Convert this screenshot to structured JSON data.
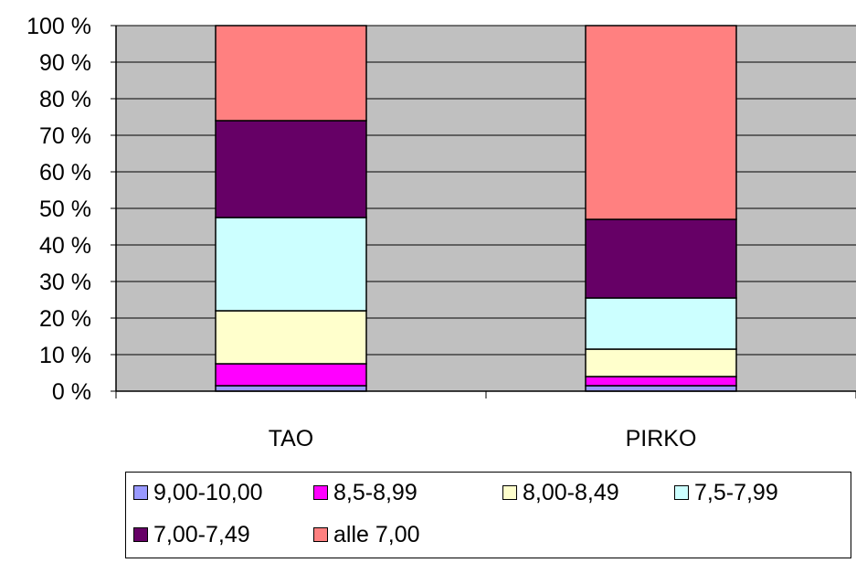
{
  "chart_data": {
    "type": "bar",
    "stacked": true,
    "percent": true,
    "title": "",
    "xlabel": "",
    "ylabel": "",
    "ylim": [
      0,
      100
    ],
    "yticks": [
      "0 %",
      "10 %",
      "20 %",
      "30 %",
      "40 %",
      "50 %",
      "60 %",
      "70 %",
      "80 %",
      "90 %",
      "100 %"
    ],
    "categories": [
      "TAO",
      "PIRKO"
    ],
    "series": [
      {
        "name": "9,00-10,00",
        "color": "#9999ff",
        "values": [
          1.5,
          1.5
        ]
      },
      {
        "name": "8,5-8,99",
        "color": "#ff00ff",
        "values": [
          6,
          2.5
        ]
      },
      {
        "name": "8,00-8,49",
        "color": "#ffffcc",
        "values": [
          14.5,
          7.5
        ]
      },
      {
        "name": "7,5-7,99",
        "color": "#ccffff",
        "values": [
          25.5,
          14
        ]
      },
      {
        "name": "7,00-7,49",
        "color": "#660066",
        "values": [
          26.5,
          21.5
        ]
      },
      {
        "name": "alle 7,00",
        "color": "#ff8080",
        "values": [
          26,
          53
        ]
      }
    ],
    "plot_background": "#c0c0c0",
    "grid": true,
    "legend": "bottom"
  }
}
